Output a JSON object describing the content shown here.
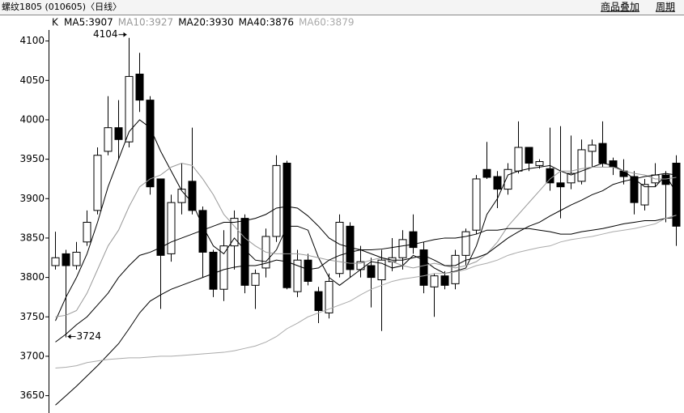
{
  "header": {
    "title": "螺纹1805 (010605)〈日线〉",
    "buttons": [
      "商品叠加",
      "周期"
    ]
  },
  "chart_data": {
    "type": "candlestick",
    "label": "K",
    "categories": [
      null,
      null,
      null,
      null,
      null,
      null,
      null,
      null,
      null,
      null,
      null,
      null,
      null,
      null,
      null,
      null,
      null,
      null,
      null,
      null,
      null,
      null,
      null,
      null,
      null,
      null,
      null,
      null,
      null,
      null,
      null,
      null,
      null,
      null,
      null,
      null,
      null,
      null,
      null,
      null,
      null,
      null,
      null,
      null,
      null,
      null,
      null,
      null,
      null,
      null,
      null,
      null,
      null,
      null,
      null,
      null,
      null,
      null,
      null,
      null
    ],
    "open": [
      3815,
      3830,
      3815,
      3845,
      3885,
      3960,
      3990,
      3972,
      4058,
      4025,
      3925,
      3830,
      3895,
      3922,
      3885,
      3832,
      3785,
      3840,
      3875,
      3790,
      3812,
      3852,
      3945,
      3782,
      3822,
      3782,
      3755,
      3805,
      3865,
      3810,
      3815,
      3797,
      3820,
      3825,
      3858,
      3835,
      3788,
      3802,
      3792,
      3828,
      3860,
      3937,
      3928,
      3912,
      3935,
      3965,
      3942,
      3938,
      3920,
      3920,
      3922,
      3960,
      3970,
      3948,
      3935,
      3928,
      3892,
      3920,
      3930,
      3945
    ],
    "high": [
      3858,
      3835,
      3845,
      3885,
      3965,
      4030,
      4025,
      4104,
      4085,
      4030,
      3925,
      3905,
      3945,
      3990,
      3890,
      3835,
      3860,
      3885,
      3880,
      3810,
      3862,
      3955,
      3948,
      3835,
      3830,
      3788,
      3805,
      3880,
      3870,
      3840,
      3825,
      3835,
      3850,
      3860,
      3880,
      3845,
      3805,
      3808,
      3835,
      3862,
      3930,
      3972,
      3935,
      3945,
      3998,
      3965,
      3950,
      3990,
      3992,
      3980,
      3975,
      3975,
      3998,
      3952,
      3950,
      3935,
      3925,
      3945,
      3935,
      3955
    ],
    "low": [
      3810,
      3724,
      3810,
      3840,
      3880,
      3955,
      3950,
      3965,
      4010,
      3905,
      3760,
      3820,
      3880,
      3880,
      3800,
      3775,
      3770,
      3810,
      3780,
      3760,
      3800,
      3845,
      3785,
      3775,
      3790,
      3742,
      3748,
      3800,
      3800,
      3800,
      3762,
      3732,
      3808,
      3810,
      3830,
      3780,
      3750,
      3785,
      3785,
      3815,
      3855,
      3925,
      3888,
      3905,
      3932,
      3935,
      3938,
      3910,
      3875,
      3912,
      3918,
      3940,
      3940,
      3930,
      3918,
      3880,
      3885,
      3915,
      3870,
      3840
    ],
    "close": [
      3825,
      3815,
      3832,
      3870,
      3955,
      3990,
      3975,
      4055,
      4025,
      3915,
      3828,
      3895,
      3912,
      3885,
      3832,
      3785,
      3840,
      3875,
      3790,
      3805,
      3852,
      3942,
      3787,
      3822,
      3795,
      3758,
      3795,
      3870,
      3810,
      3820,
      3800,
      3822,
      3825,
      3848,
      3838,
      3790,
      3802,
      3790,
      3828,
      3858,
      3925,
      3927,
      3912,
      3937,
      3965,
      3945,
      3947,
      3920,
      3915,
      3932,
      3962,
      3968,
      3945,
      3940,
      3928,
      3895,
      3918,
      3930,
      3918,
      3865
    ],
    "series": [
      {
        "name": "MA5:3907",
        "color": "#000000",
        "values": [
          3745,
          3775,
          3800,
          3830,
          3870,
          3915,
          3950,
          3985,
          4000,
          3990,
          3960,
          3935,
          3910,
          3895,
          3865,
          3840,
          3830,
          3850,
          3835,
          3822,
          3820,
          3835,
          3865,
          3865,
          3860,
          3825,
          3800,
          3790,
          3800,
          3810,
          3820,
          3818,
          3812,
          3815,
          3828,
          3822,
          3812,
          3805,
          3808,
          3812,
          3840,
          3880,
          3900,
          3930,
          3935,
          3938,
          3940,
          3942,
          3935,
          3930,
          3935,
          3940,
          3945,
          3942,
          3935,
          3925,
          3915,
          3915,
          3930,
          3907
        ]
      },
      {
        "name": "MA10:3927",
        "color": "#999999",
        "values": [
          3750,
          3752,
          3758,
          3780,
          3810,
          3840,
          3860,
          3890,
          3915,
          3925,
          3930,
          3940,
          3945,
          3942,
          3925,
          3905,
          3880,
          3865,
          3850,
          3840,
          3832,
          3830,
          3830,
          3830,
          3828,
          3825,
          3822,
          3820,
          3818,
          3818,
          3822,
          3825,
          3820,
          3815,
          3812,
          3815,
          3818,
          3815,
          3812,
          3815,
          3820,
          3830,
          3845,
          3865,
          3880,
          3895,
          3910,
          3925,
          3935,
          3935,
          3938,
          3940,
          3940,
          3940,
          3935,
          3932,
          3930,
          3925,
          3925,
          3927
        ]
      },
      {
        "name": "MA20:3930",
        "color": "#000000",
        "values": [
          3718,
          3728,
          3740,
          3750,
          3765,
          3780,
          3800,
          3815,
          3828,
          3832,
          3838,
          3845,
          3850,
          3855,
          3860,
          3865,
          3870,
          3870,
          3872,
          3875,
          3880,
          3888,
          3890,
          3888,
          3878,
          3865,
          3850,
          3842,
          3838,
          3835,
          3830,
          3825,
          3822,
          3822,
          3825,
          3828,
          3822,
          3815,
          3815,
          3822,
          3825,
          3830,
          3840,
          3850,
          3858,
          3865,
          3870,
          3878,
          3885,
          3892,
          3898,
          3905,
          3910,
          3918,
          3922,
          3925,
          3928,
          3930,
          3932,
          3930
        ]
      },
      {
        "name": "MA40:3876",
        "color": "#000000",
        "values": [
          3638,
          3650,
          3662,
          3675,
          3688,
          3702,
          3716,
          3735,
          3755,
          3770,
          3778,
          3785,
          3790,
          3795,
          3800,
          3805,
          3810,
          3813,
          3815,
          3815,
          3818,
          3822,
          3820,
          3815,
          3810,
          3812,
          3822,
          3828,
          3832,
          3835,
          3835,
          3836,
          3838,
          3840,
          3842,
          3845,
          3848,
          3850,
          3850,
          3852,
          3855,
          3860,
          3860,
          3862,
          3862,
          3862,
          3860,
          3858,
          3855,
          3855,
          3858,
          3860,
          3862,
          3865,
          3868,
          3870,
          3872,
          3872,
          3875,
          3876
        ]
      },
      {
        "name": "MA60:3879",
        "color": "#aaaaaa",
        "values": [
          3685,
          3686,
          3688,
          3692,
          3694,
          3696,
          3697,
          3698,
          3698,
          3699,
          3700,
          3700,
          3701,
          3702,
          3703,
          3704,
          3705,
          3707,
          3710,
          3713,
          3718,
          3725,
          3735,
          3742,
          3750,
          3755,
          3760,
          3765,
          3770,
          3778,
          3785,
          3790,
          3795,
          3798,
          3800,
          3802,
          3805,
          3805,
          3807,
          3810,
          3815,
          3818,
          3822,
          3828,
          3832,
          3835,
          3838,
          3840,
          3845,
          3848,
          3850,
          3852,
          3855,
          3858,
          3860,
          3862,
          3865,
          3868,
          3875,
          3879
        ]
      }
    ],
    "ylim": [
      3628,
      4114
    ],
    "yticks": [
      3650,
      3700,
      3750,
      3800,
      3850,
      3900,
      3950,
      4000,
      4050,
      4100
    ],
    "up_color": "#ffffff",
    "down_color": "#000000"
  }
}
